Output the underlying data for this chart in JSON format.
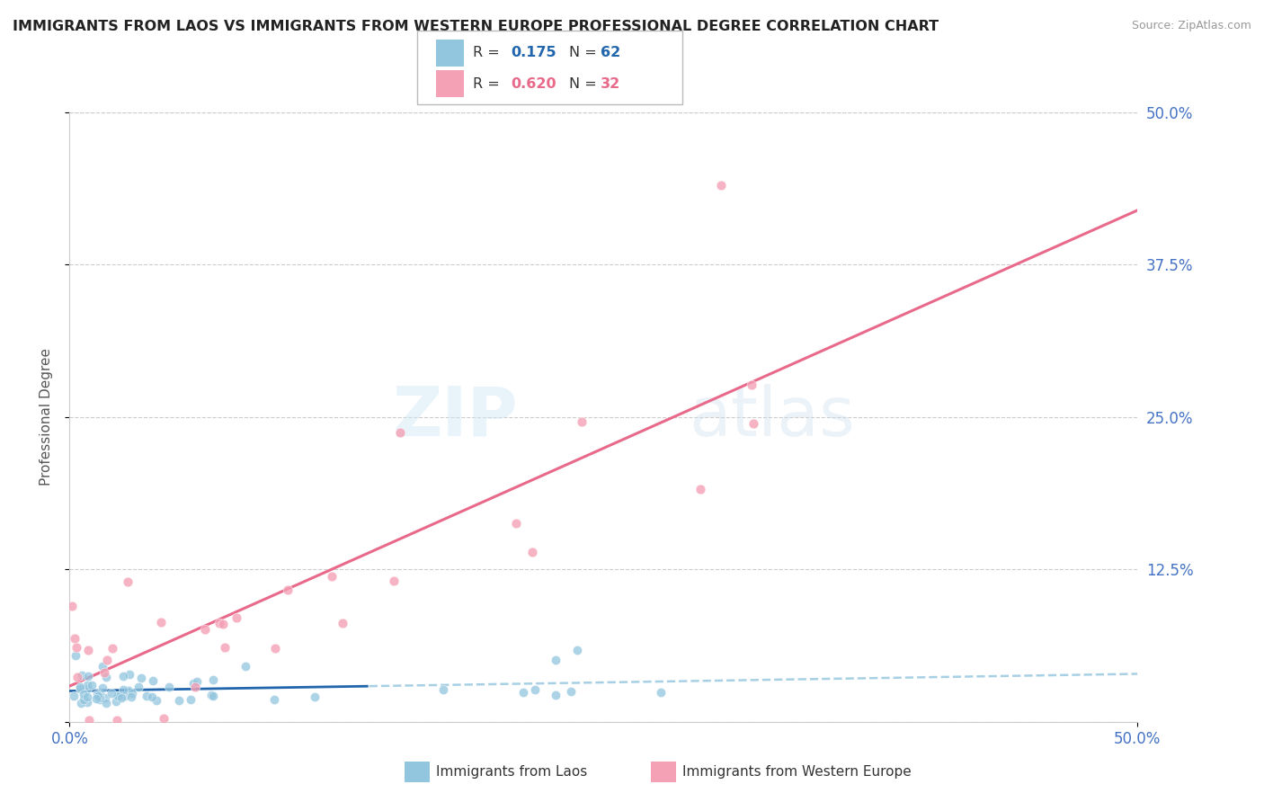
{
  "title": "IMMIGRANTS FROM LAOS VS IMMIGRANTS FROM WESTERN EUROPE PROFESSIONAL DEGREE CORRELATION CHART",
  "source": "Source: ZipAtlas.com",
  "ylabel": "Professional Degree",
  "xlim": [
    0.0,
    0.5
  ],
  "ylim": [
    0.0,
    0.5
  ],
  "ytick_vals": [
    0.0,
    0.125,
    0.25,
    0.375,
    0.5
  ],
  "ytick_labels_right": [
    "",
    "12.5%",
    "25.0%",
    "37.5%",
    "50.0%"
  ],
  "xtick_vals": [
    0.0,
    0.5
  ],
  "xtick_labels": [
    "0.0%",
    "50.0%"
  ],
  "color_blue": "#92c5de",
  "color_blue_line": "#2166ac",
  "color_pink": "#f4a0b5",
  "color_pink_line": "#e8698a",
  "background_color": "#ffffff",
  "laos_R": "0.175",
  "laos_N": "62",
  "we_R": "0.620",
  "we_N": "32",
  "watermark_zip": "ZIP",
  "watermark_atlas": "atlas",
  "laos_label": "Immigrants from Laos",
  "we_label": "Immigrants from Western Europe",
  "tick_color": "#4472c4",
  "grid_color": "#cccccc"
}
